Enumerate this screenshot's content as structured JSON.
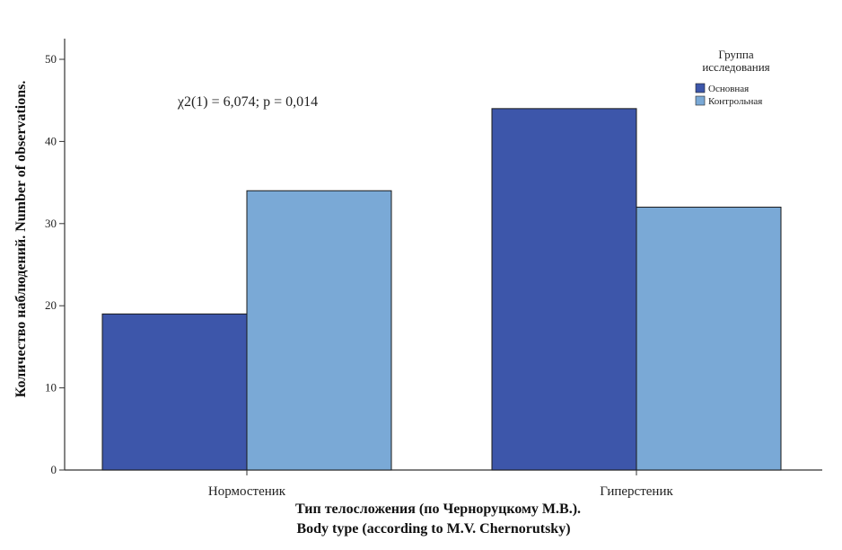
{
  "chart_data": {
    "type": "bar",
    "title": "",
    "annotation": "χ2(1) = 6,074; p = 0,014",
    "xlabel_ru": "Тип телосложения (по Черноруцкому М.В.).",
    "xlabel_en": "Body type (according to M.V. Chernorutsky)",
    "ylabel": "Количество наблюдений. Number of observations.",
    "categories": [
      "Нормостеник",
      "Гиперстеник"
    ],
    "series": [
      {
        "name": "Основная",
        "values": [
          19,
          44
        ],
        "color": "#3d56aa"
      },
      {
        "name": "Контрольная",
        "values": [
          34,
          32
        ],
        "color": "#7aa9d6"
      }
    ],
    "ylim": [
      0,
      50
    ],
    "yticks": [
      0,
      10,
      20,
      30,
      40,
      50
    ],
    "grid": false,
    "legend": {
      "title_line1": "Группа",
      "title_line2": "исследования",
      "placement": "top-right"
    }
  }
}
